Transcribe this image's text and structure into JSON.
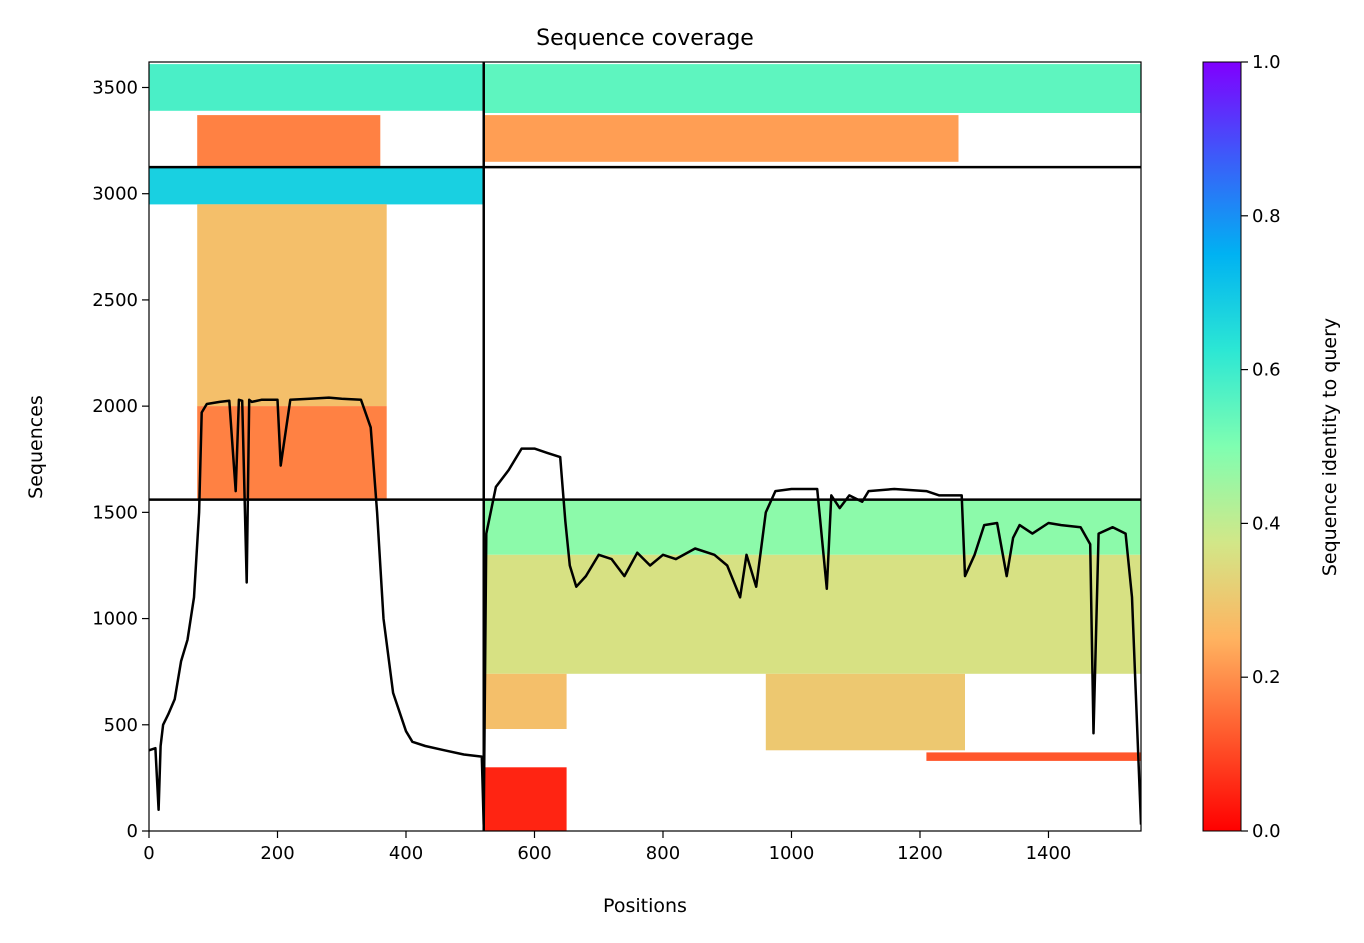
{
  "chart_data": {
    "type": "heatmap",
    "title": "Sequence coverage",
    "xlabel": "Positions",
    "ylabel": "Sequences",
    "xlim": [
      0,
      1544
    ],
    "ylim": [
      0,
      3620
    ],
    "x_ticks": [
      0,
      200,
      400,
      600,
      800,
      1000,
      1200,
      1400
    ],
    "y_ticks": [
      0,
      500,
      1000,
      1500,
      2000,
      2500,
      3000,
      3500
    ],
    "colorbar": {
      "label": "Sequence identity to query",
      "min": 0.0,
      "max": 1.0,
      "ticks": [
        "0.0",
        "0.2",
        "0.4",
        "0.6",
        "0.8",
        "1.0"
      ],
      "colormap": "rainbow"
    },
    "block_boundaries": {
      "positions": [
        521
      ],
      "sequences": [
        1560,
        3125
      ]
    },
    "coverage_blocks": [
      {
        "x": [
          0,
          521
        ],
        "y": [
          3390,
          3610
        ],
        "identity": 0.58
      },
      {
        "x": [
          75,
          360
        ],
        "y": [
          3125,
          3370
        ],
        "identity": 0.18
      },
      {
        "x": [
          521,
          1544
        ],
        "y": [
          3380,
          3610
        ],
        "identity": 0.55
      },
      {
        "x": [
          521,
          1260
        ],
        "y": [
          3150,
          3370
        ],
        "identity": 0.22
      },
      {
        "x": [
          0,
          521
        ],
        "y": [
          2950,
          3125
        ],
        "identity": 0.68
      },
      {
        "x": [
          75,
          370
        ],
        "y": [
          2000,
          2950
        ],
        "identity": 0.28
      },
      {
        "x": [
          75,
          370
        ],
        "y": [
          1560,
          2000
        ],
        "identity": 0.18
      },
      {
        "x": [
          521,
          1544
        ],
        "y": [
          1300,
          1560
        ],
        "identity": 0.48
      },
      {
        "x": [
          521,
          1544
        ],
        "y": [
          740,
          1300
        ],
        "identity": 0.36
      },
      {
        "x": [
          521,
          650
        ],
        "y": [
          480,
          740
        ],
        "identity": 0.28
      },
      {
        "x": [
          960,
          1270
        ],
        "y": [
          380,
          740
        ],
        "identity": 0.3
      },
      {
        "x": [
          521,
          650
        ],
        "y": [
          0,
          300
        ],
        "identity": 0.05
      },
      {
        "x": [
          1210,
          1544
        ],
        "y": [
          330,
          370
        ],
        "identity": 0.12
      }
    ],
    "coverage_line": {
      "name": "",
      "x": [
        0,
        10,
        15,
        18,
        22,
        30,
        40,
        50,
        60,
        70,
        78,
        82,
        90,
        110,
        125,
        135,
        140,
        145,
        152,
        156,
        160,
        175,
        200,
        205,
        220,
        250,
        280,
        300,
        330,
        345,
        355,
        365,
        380,
        400,
        410,
        430,
        460,
        490,
        518,
        521,
        525,
        540,
        560,
        580,
        600,
        620,
        640,
        648,
        655,
        665,
        680,
        700,
        720,
        740,
        760,
        780,
        800,
        820,
        850,
        880,
        900,
        920,
        930,
        945,
        960,
        975,
        1000,
        1040,
        1055,
        1062,
        1075,
        1090,
        1110,
        1120,
        1160,
        1210,
        1230,
        1265,
        1270,
        1285,
        1300,
        1320,
        1335,
        1345,
        1355,
        1375,
        1400,
        1420,
        1450,
        1465,
        1470,
        1478,
        1500,
        1520,
        1530,
        1544
      ],
      "y": [
        380,
        390,
        100,
        400,
        500,
        550,
        620,
        800,
        900,
        1100,
        1500,
        1970,
        2010,
        2020,
        2025,
        1600,
        2030,
        2025,
        1170,
        2030,
        2020,
        2030,
        2030,
        1720,
        2030,
        2035,
        2040,
        2035,
        2030,
        1900,
        1500,
        1000,
        650,
        470,
        420,
        400,
        380,
        360,
        350,
        30,
        1400,
        1620,
        1700,
        1800,
        1800,
        1780,
        1760,
        1460,
        1250,
        1150,
        1200,
        1300,
        1280,
        1200,
        1310,
        1250,
        1300,
        1280,
        1330,
        1300,
        1250,
        1100,
        1300,
        1150,
        1500,
        1600,
        1610,
        1610,
        1140,
        1580,
        1520,
        1580,
        1550,
        1600,
        1610,
        1600,
        1580,
        1580,
        1200,
        1300,
        1440,
        1450,
        1200,
        1380,
        1440,
        1400,
        1450,
        1440,
        1430,
        1350,
        460,
        1400,
        1430,
        1400,
        1100,
        30
      ]
    }
  }
}
